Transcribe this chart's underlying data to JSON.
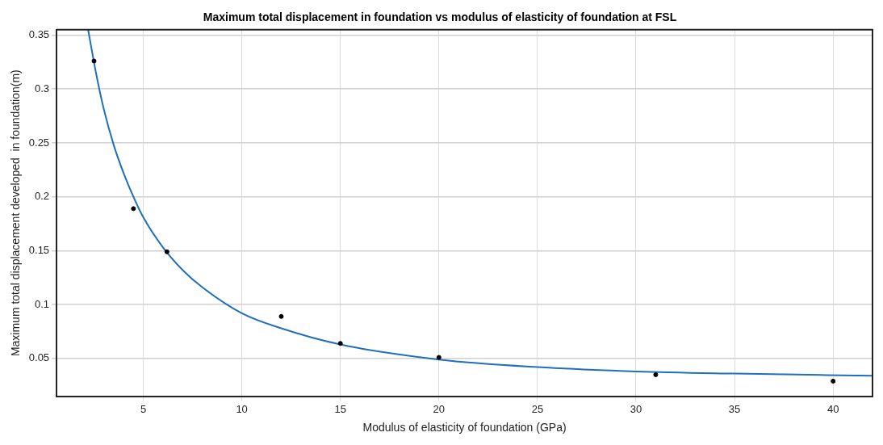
{
  "chart_data": {
    "type": "scatter",
    "title": "Maximum total displacement in foundation vs modulus of elasticity of foundation at FSL",
    "xlabel": "Modulus of elasticity of foundation (GPa)",
    "ylabel": "Maximum total displacement developed  in foundation(m)",
    "series": [
      {
        "type": "scatter",
        "color": "#000000",
        "marker": "circle",
        "x": [
          2.5,
          4.5,
          6.2,
          12,
          15,
          20,
          31,
          40
        ],
        "values": [
          0.326,
          0.189,
          0.149,
          0.089,
          0.064,
          0.051,
          0.035,
          0.029
        ]
      },
      {
        "type": "line",
        "color": "#1f6fbf",
        "marker": "none",
        "line_style": "solid",
        "x": [
          2.2,
          2.6,
          3,
          3.5,
          4,
          4.5,
          5,
          6,
          7,
          8,
          10,
          12,
          15,
          20,
          25,
          30,
          35,
          42
        ],
        "values": [
          0.355,
          0.315,
          0.281,
          0.248,
          0.222,
          0.2,
          0.181,
          0.153,
          0.132,
          0.116,
          0.092,
          0.078,
          0.063,
          0.049,
          0.042,
          0.038,
          0.036,
          0.034
        ]
      }
    ],
    "xlim": [
      0.6,
      42
    ],
    "xticks": [
      5,
      10,
      15,
      20,
      25,
      30,
      35,
      40
    ],
    "ylim": [
      0.015,
      0.355
    ],
    "yticks": [
      0.05,
      0.1,
      0.15,
      0.2,
      0.25,
      0.3,
      0.35
    ],
    "grid": true,
    "legend": false
  }
}
